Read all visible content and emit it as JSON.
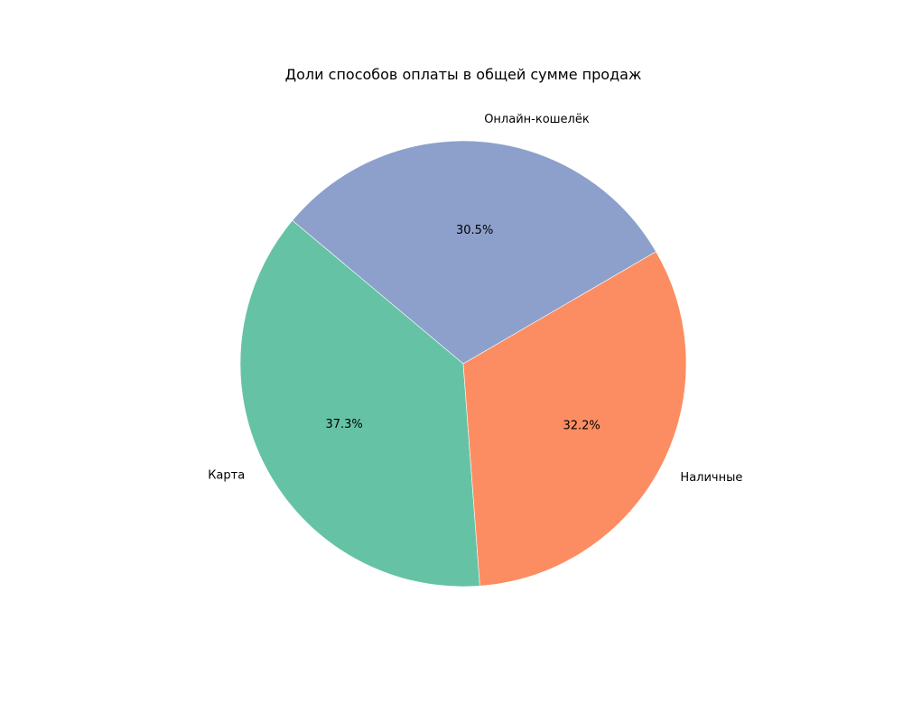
{
  "chart_data": {
    "type": "pie",
    "title": "Доли способов оплаты в общей сумме продаж",
    "slices": [
      {
        "label": "Карта",
        "value": 37.3,
        "pct_label": "37.3%",
        "color": "#66c2a5"
      },
      {
        "label": "Наличные",
        "value": 32.2,
        "pct_label": "32.2%",
        "color": "#fc8d62"
      },
      {
        "label": "Онлайн-кошелёк",
        "value": 30.5,
        "pct_label": "30.5%",
        "color": "#8da0cb"
      }
    ],
    "start_angle_deg": 140,
    "direction": "counterclockwise",
    "legend": "none"
  }
}
